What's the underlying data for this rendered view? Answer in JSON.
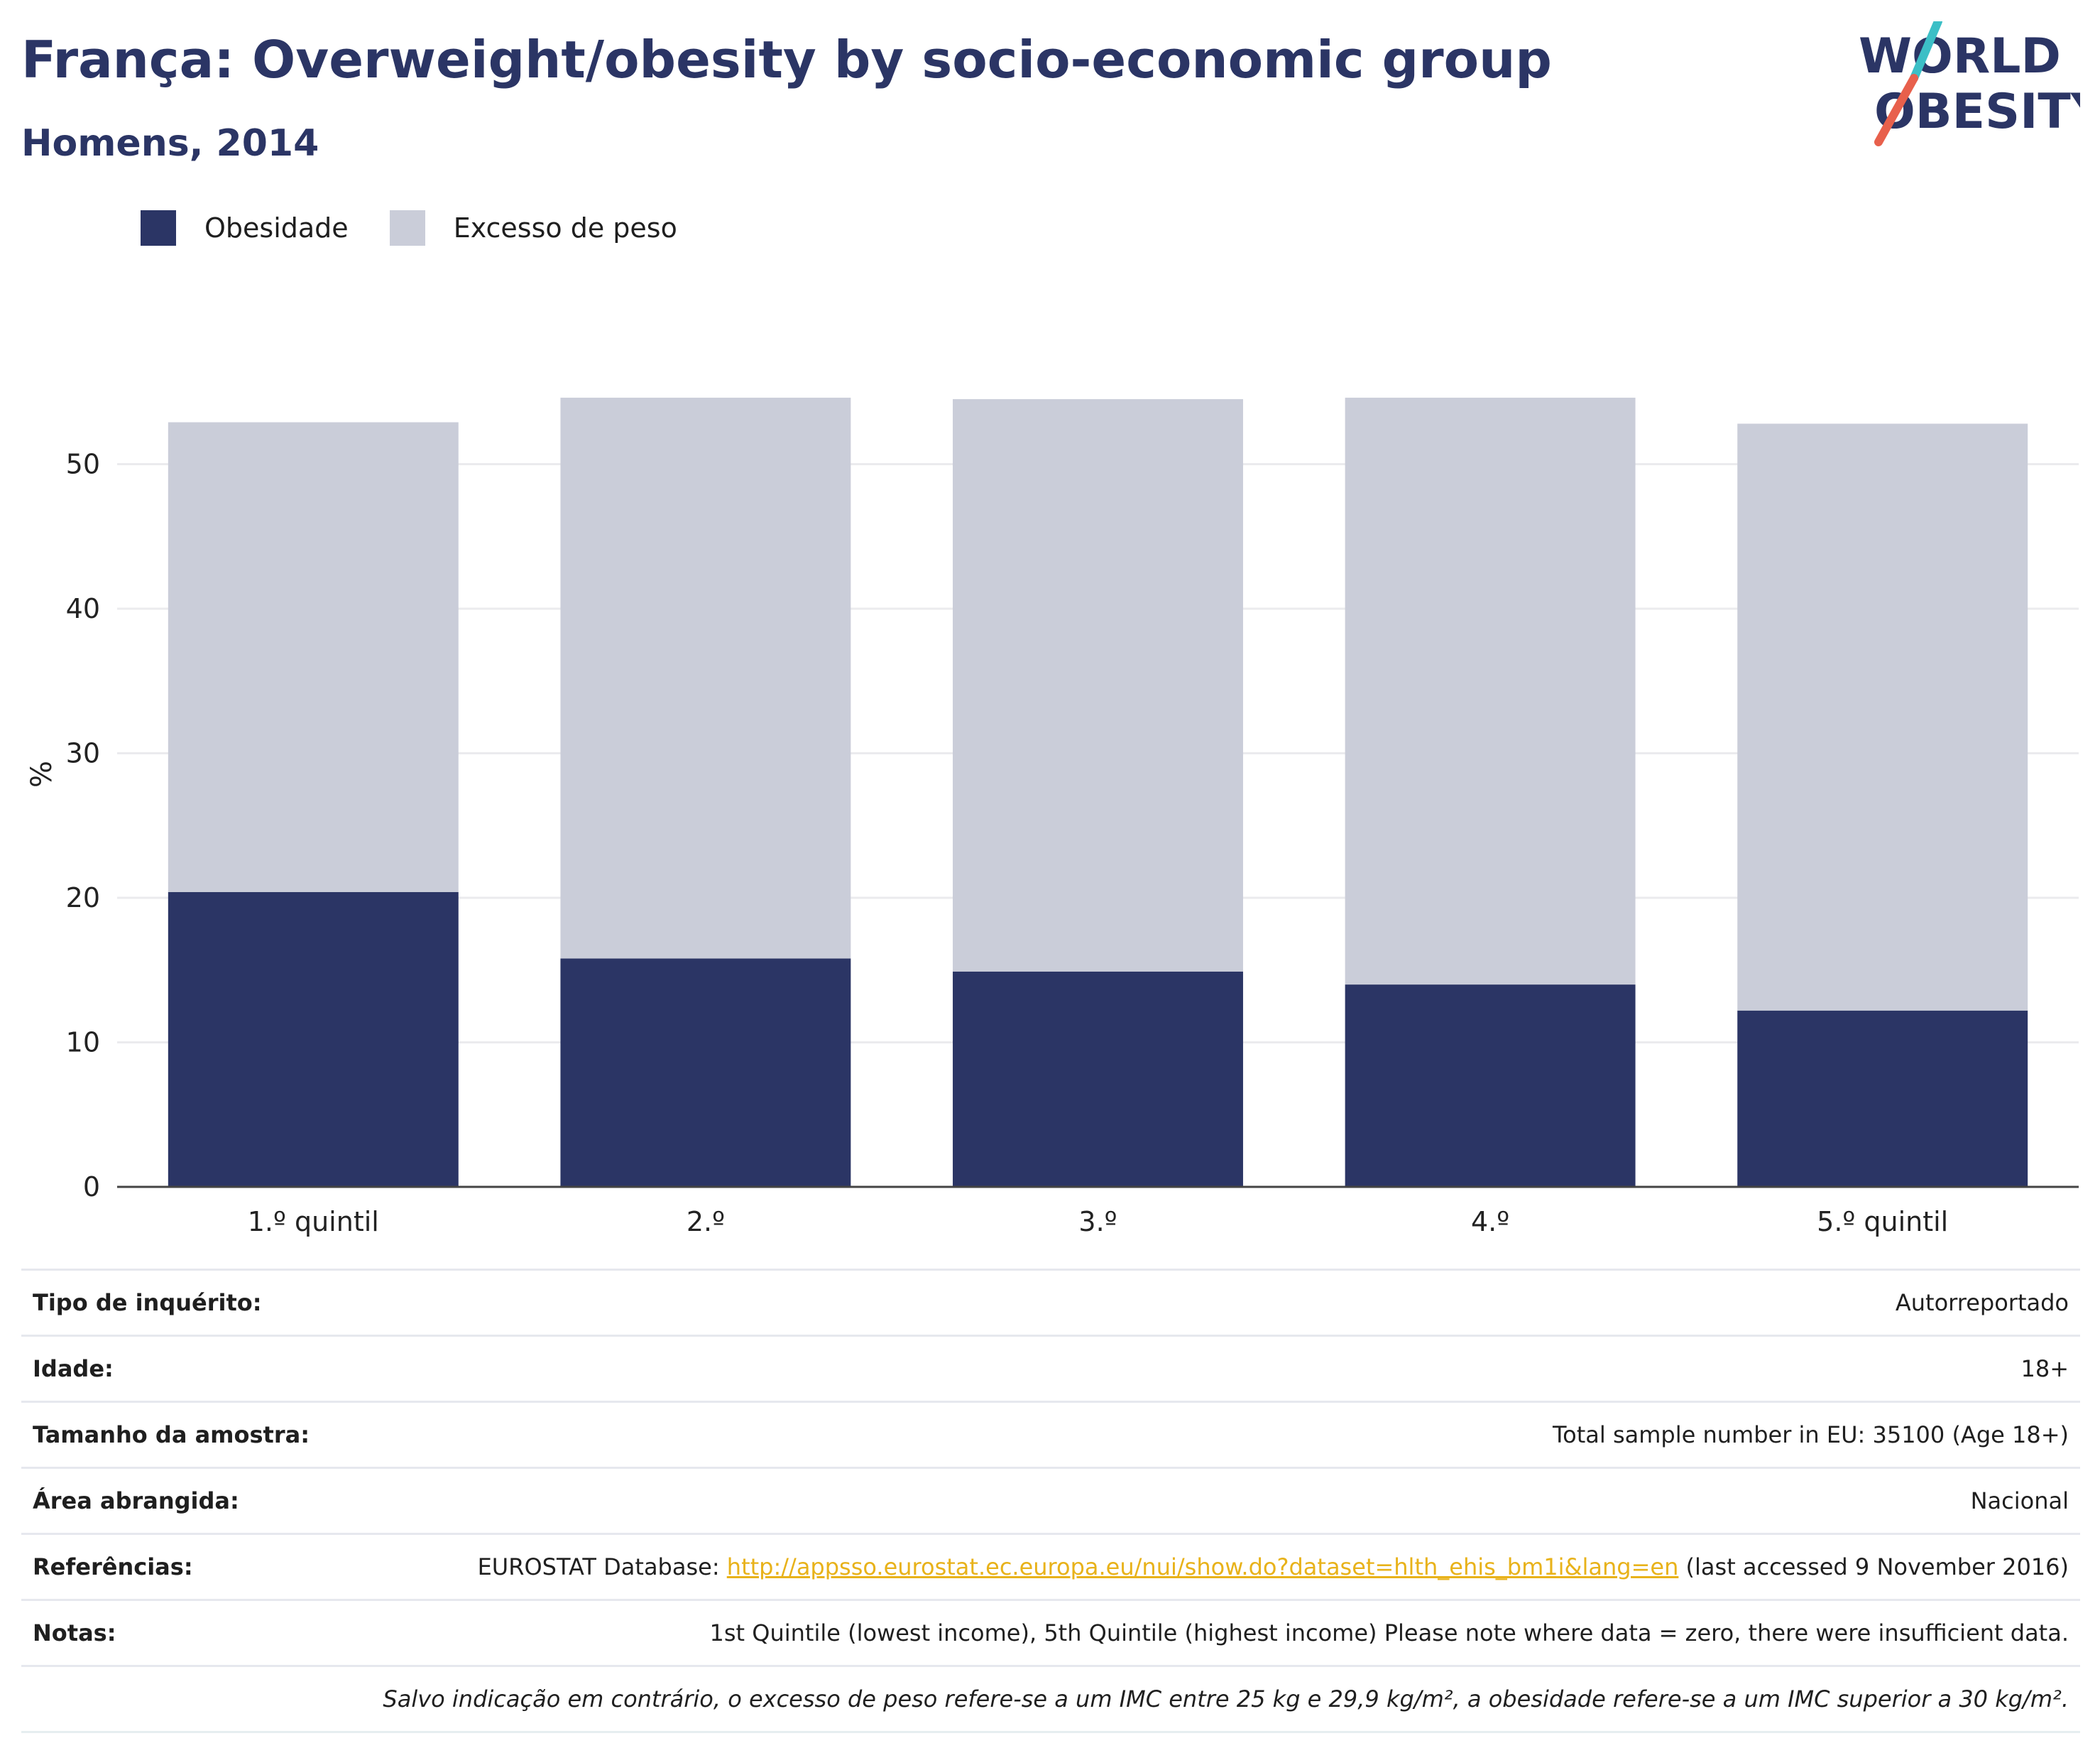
{
  "header": {
    "title": "França: Overweight/obesity by socio-economic group",
    "subtitle": "Homens, 2014"
  },
  "logo": {
    "line1": "WORLD",
    "line2": "OBESITY",
    "colors": {
      "text": "#2b3565",
      "slash_top": "#3cbfc6",
      "slash_bottom": "#e8604c"
    }
  },
  "legend": {
    "items": [
      {
        "label": "Obesidade",
        "color": "#2b3565"
      },
      {
        "label": "Excesso de peso",
        "color": "#cacdd9"
      }
    ]
  },
  "chart_data": {
    "type": "bar",
    "stacked": true,
    "categories": [
      "1.º quintil",
      "2.º",
      "3.º",
      "4.º",
      "5.º quintil"
    ],
    "series": [
      {
        "name": "Obesidade",
        "values": [
          20.4,
          15.8,
          14.9,
          14.0,
          12.2
        ],
        "color": "#2b3565"
      },
      {
        "name": "Excesso de peso",
        "values": [
          32.5,
          38.8,
          39.6,
          40.6,
          40.6
        ],
        "color": "#cacdd9"
      }
    ],
    "ylabel": "%",
    "yticks": [
      0,
      10,
      20,
      30,
      40,
      50
    ],
    "ylim": [
      0,
      57
    ],
    "grid": true,
    "legend_position": "top-left"
  },
  "info": {
    "rows": [
      {
        "key": "Tipo de inquérito:",
        "value": "Autorreportado"
      },
      {
        "key": "Idade:",
        "value": "18+"
      },
      {
        "key": "Tamanho da amostra:",
        "value": "Total sample number in EU: 35100 (Age 18+)"
      },
      {
        "key": "Área abrangida:",
        "value": "Nacional"
      }
    ],
    "references": {
      "key": "Referências:",
      "prefix": "EUROSTAT Database: ",
      "link": "http://appsso.eurostat.ec.europa.eu/nui/show.do?dataset=hlth_ehis_bm1i&lang=en",
      "suffix": " (last accessed 9 November 2016)"
    },
    "notes": {
      "key": "Notas:",
      "value": "1st Quintile (lowest income), 5th Quintile (highest income) Please note where data = zero, there were insufficient data."
    },
    "footnote": "Salvo indicação em contrário, o excesso de peso refere-se a um IMC entre 25 kg e 29,9 kg/m², a obesidade refere-se a um IMC superior a 30 kg/m²."
  }
}
